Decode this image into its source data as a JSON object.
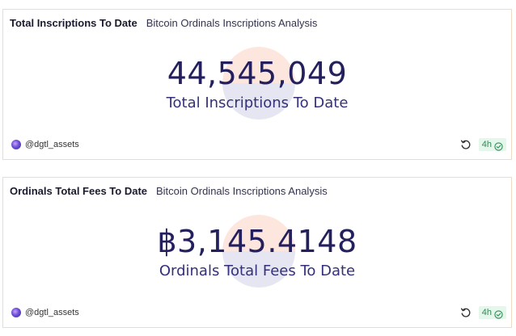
{
  "cards": [
    {
      "title": "Total Inscriptions To Date",
      "subtitle": "Bitcoin Ordinals Inscriptions Analysis",
      "value": "44,545,049",
      "label": "Total Inscriptions To Date",
      "author": "@dgtl_assets",
      "age": "4h",
      "icons": {
        "avatar": "avatar",
        "refresh": "refresh-icon",
        "status": "check-circle-icon"
      }
    },
    {
      "title": "Ordinals Total Fees To Date",
      "subtitle": "Bitcoin Ordinals Inscriptions Analysis",
      "value": "฿3,145.4148",
      "label": "Ordinals Total Fees To Date",
      "author": "@dgtl_assets",
      "age": "4h",
      "icons": {
        "avatar": "avatar",
        "refresh": "refresh-icon",
        "status": "check-circle-icon"
      }
    }
  ],
  "colors": {
    "value": "#24205e",
    "label": "#34307a",
    "border": "#f1d9c4",
    "badge_bg": "#e4f7ea",
    "badge_text": "#2e8b57"
  }
}
